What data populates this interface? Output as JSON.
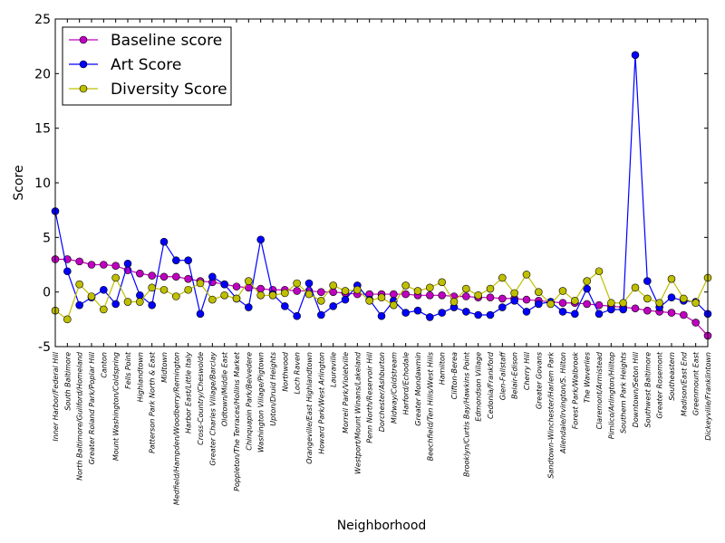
{
  "chart_data": {
    "type": "line",
    "xlabel": "Neighborhood",
    "ylabel": "Score",
    "ylim": [
      -5,
      25
    ],
    "yticks": [
      -5,
      0,
      5,
      10,
      15,
      20,
      25
    ],
    "grid": false,
    "legend_position": "top-left",
    "categories": [
      "Inner Harbor/Federal Hill",
      "South Baltimore",
      "North Baltimore/Guilford/Homeland",
      "Greater Roland Park/Poplar Hill",
      "Canton",
      "Mount Washington/Coldspring",
      "Fells Point",
      "Highlandtown",
      "Patterson Park North & East",
      "Midtown",
      "Medfield/Hampden/Woodberry/Remington",
      "Harbor East/Little Italy",
      "Cross-Country/Cheswolde",
      "Greater Charles Village/Barclay",
      "Oldtown/Middle East",
      "Poppleton/The Terraces/Hollins Market",
      "Chinquapin Park/Belvedere",
      "Washington Village/Pigtown",
      "Upton/Druid Heights",
      "Northwood",
      "Loch Raven",
      "Orangeville/East Highlandtown",
      "Howard Park/West Arlington",
      "Lauraville",
      "Morrell Park/Violetville",
      "Westport/Mount Winans/Lakeland",
      "Penn North/Reservoir Hill",
      "Dorchester/Ashburton",
      "Midway/Coldstream",
      "Harford/Echodale",
      "Greater Mondawmin",
      "Beechfield/Ten Hills/West Hills",
      "Hamilton",
      "Clifton-Berea",
      "Brooklyn/Curtis Bay/Hawkins Point",
      "Edmondson Village",
      "Cedonia/Frankford",
      "Glen-Fallstaff",
      "Belair-Edison",
      "Cherry Hill",
      "Greater Govans",
      "Sandtown-Winchester/Harlem Park",
      "Allendale/Irvington/S. Hilton",
      "Forest Park/Walbrook",
      "The Waverlies",
      "Claremont/Armistead",
      "Pimlico/Arlington/Hilltop",
      "Southern Park Heights",
      "Downtown/Seton Hill",
      "Southwest Baltimore",
      "Greater Rosemont",
      "Southeastern",
      "Madison/East End",
      "Greenmount East",
      "Dickeyville/Franklintown"
    ],
    "series": [
      {
        "name": "Baseline score",
        "color": "#bf00bf",
        "values": [
          3.0,
          3.0,
          2.8,
          2.5,
          2.5,
          2.4,
          2.0,
          1.7,
          1.5,
          1.4,
          1.4,
          1.2,
          1.0,
          0.9,
          0.7,
          0.5,
          0.4,
          0.3,
          0.2,
          0.2,
          0.1,
          0.1,
          0.0,
          0.0,
          -0.1,
          -0.2,
          -0.2,
          -0.2,
          -0.2,
          -0.2,
          -0.3,
          -0.3,
          -0.3,
          -0.4,
          -0.4,
          -0.5,
          -0.5,
          -0.6,
          -0.6,
          -0.7,
          -0.8,
          -0.9,
          -1.0,
          -1.0,
          -1.1,
          -1.2,
          -1.3,
          -1.4,
          -1.5,
          -1.7,
          -1.8,
          -1.9,
          -2.1,
          -2.8,
          -4.0
        ]
      },
      {
        "name": "Art Score",
        "color": "#0000ff",
        "values": [
          7.4,
          1.9,
          -1.2,
          -0.5,
          0.2,
          -1.1,
          2.6,
          -0.3,
          -1.2,
          4.6,
          2.9,
          2.9,
          -2.0,
          1.4,
          0.7,
          -0.6,
          -1.4,
          4.8,
          -0.2,
          -1.3,
          -2.2,
          0.8,
          -2.1,
          -1.3,
          -0.7,
          0.6,
          -0.7,
          -2.2,
          -0.8,
          -1.9,
          -1.7,
          -2.3,
          -1.9,
          -1.4,
          -1.8,
          -2.1,
          -2.1,
          -1.4,
          -0.8,
          -1.8,
          -1.1,
          -0.9,
          -1.8,
          -2.0,
          0.3,
          -2.0,
          -1.6,
          -1.6,
          21.7,
          1.0,
          -1.4,
          -0.5,
          -0.8,
          -0.9,
          -2.0
        ]
      },
      {
        "name": "Diversity Score",
        "color": "#bfbf00",
        "values": [
          -1.7,
          -2.5,
          0.7,
          -0.4,
          -1.6,
          1.3,
          -0.9,
          -0.9,
          0.4,
          0.2,
          -0.4,
          0.2,
          0.8,
          -0.7,
          -0.3,
          -0.6,
          1.0,
          -0.3,
          -0.3,
          -0.1,
          0.8,
          -0.2,
          -0.8,
          0.6,
          0.1,
          0.2,
          -0.8,
          -0.5,
          -1.2,
          0.6,
          0.1,
          0.4,
          0.9,
          -0.9,
          0.3,
          -0.3,
          0.3,
          1.3,
          -0.1,
          1.6,
          0.0,
          -1.1,
          0.1,
          -0.8,
          1.0,
          1.9,
          -1.0,
          -1.0,
          0.4,
          -0.6,
          -1.0,
          1.2,
          -0.6,
          -1.0,
          1.3
        ]
      }
    ]
  }
}
